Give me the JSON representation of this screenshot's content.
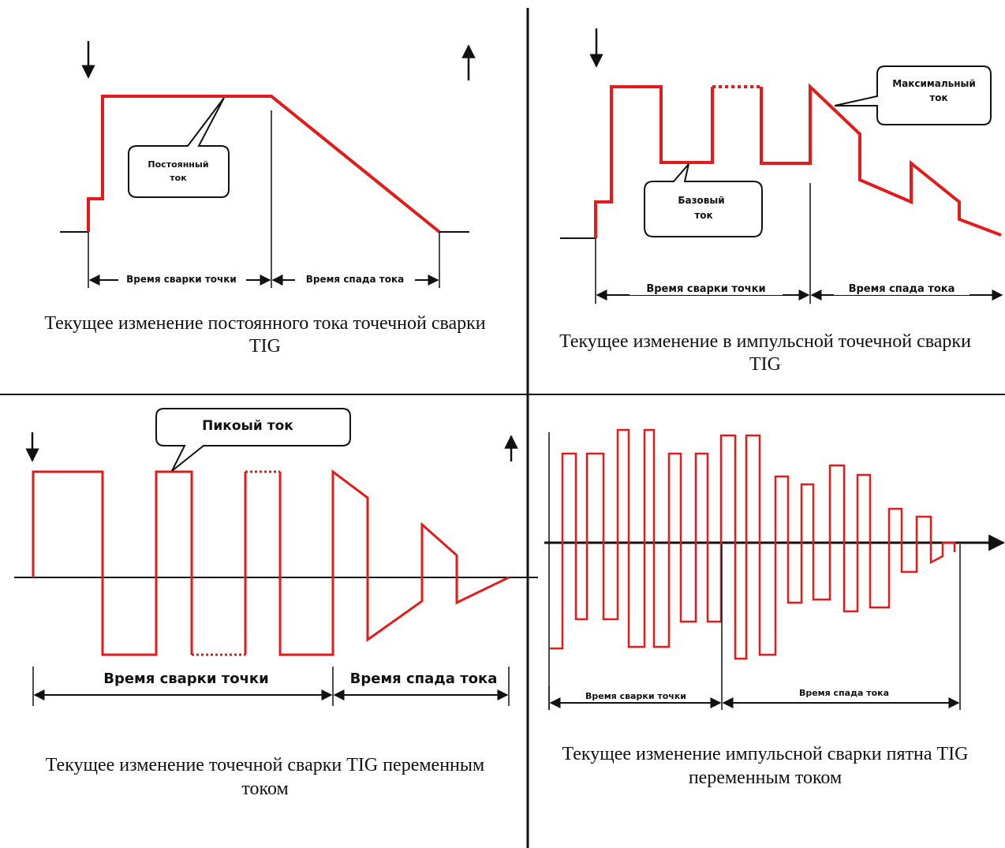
{
  "panels": {
    "top_left": {
      "bubble_label": [
        "Постоянный",
        "ток"
      ],
      "segment_labels": [
        "Время сварки точки",
        "Время спада тока"
      ],
      "caption": [
        "Текущее изменение постоянного тока точечной сварки",
        "TIG"
      ]
    },
    "top_right": {
      "bubble_max": [
        "Максимальный",
        "ток"
      ],
      "bubble_base": [
        "Базовый",
        "ток"
      ],
      "segment_labels": [
        "Время сварки точки",
        "Время спада тока"
      ],
      "caption": [
        "Текущее изменение в импульсной точечной сварки",
        "TIG"
      ]
    },
    "bottom_left": {
      "bubble_label": "Пикоый ток",
      "segment_labels": [
        "Время сварки точки",
        "Время спада тока"
      ],
      "caption": [
        "Текущее изменение точечной сварки TIG переменным",
        "током"
      ]
    },
    "bottom_right": {
      "segment_labels": [
        "Время сварки точки",
        "Время спада тока"
      ],
      "caption": [
        "Текущее изменение импульсной сварки пятна TIG",
        "переменным током"
      ]
    }
  },
  "colors": {
    "waveform": "#e41b1b",
    "lines": "#111111"
  },
  "icons": [
    "down-arrow-icon",
    "up-arrow-icon"
  ]
}
